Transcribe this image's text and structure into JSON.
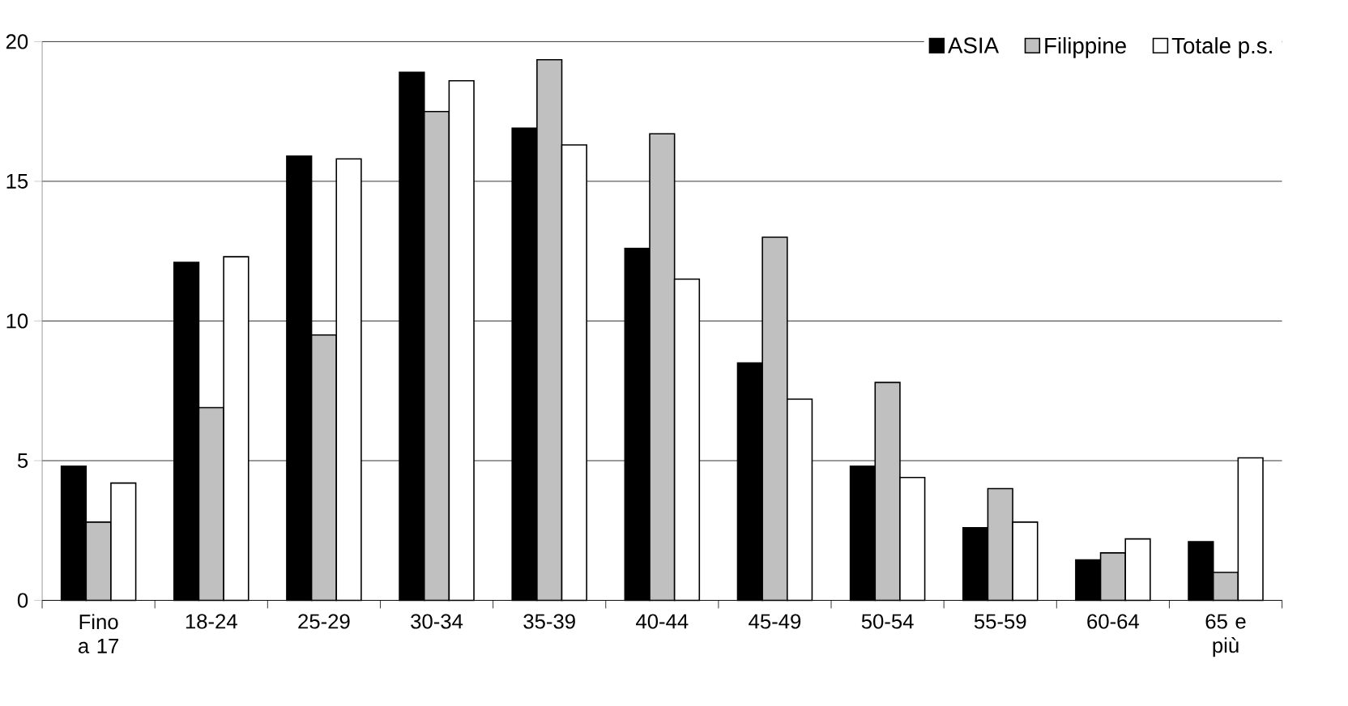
{
  "chart_data": {
    "type": "bar",
    "categories": [
      "Fino a 17",
      "18-24",
      "25-29",
      "30-34",
      "35-39",
      "40-44",
      "45-49",
      "50-54",
      "55-59",
      "60-64",
      "65 e più"
    ],
    "series": [
      {
        "name": "ASIA",
        "color": "#000000",
        "values": [
          4.8,
          12.1,
          15.9,
          18.9,
          16.9,
          12.6,
          8.5,
          4.8,
          2.6,
          1.45,
          2.1
        ]
      },
      {
        "name": "Filippine",
        "color": "#c0c0c0",
        "values": [
          2.8,
          6.9,
          9.5,
          17.5,
          19.35,
          16.7,
          13.0,
          7.8,
          4.0,
          1.7,
          1.0
        ]
      },
      {
        "name": "Totale p.s.",
        "color": "#ffffff",
        "values": [
          4.2,
          12.3,
          15.8,
          18.6,
          16.3,
          11.5,
          7.2,
          4.4,
          2.8,
          2.2,
          5.1
        ]
      }
    ],
    "ylim": [
      0,
      20
    ],
    "yticks": [
      0,
      5,
      10,
      15,
      20
    ],
    "grid": "y",
    "legend": "top right"
  }
}
